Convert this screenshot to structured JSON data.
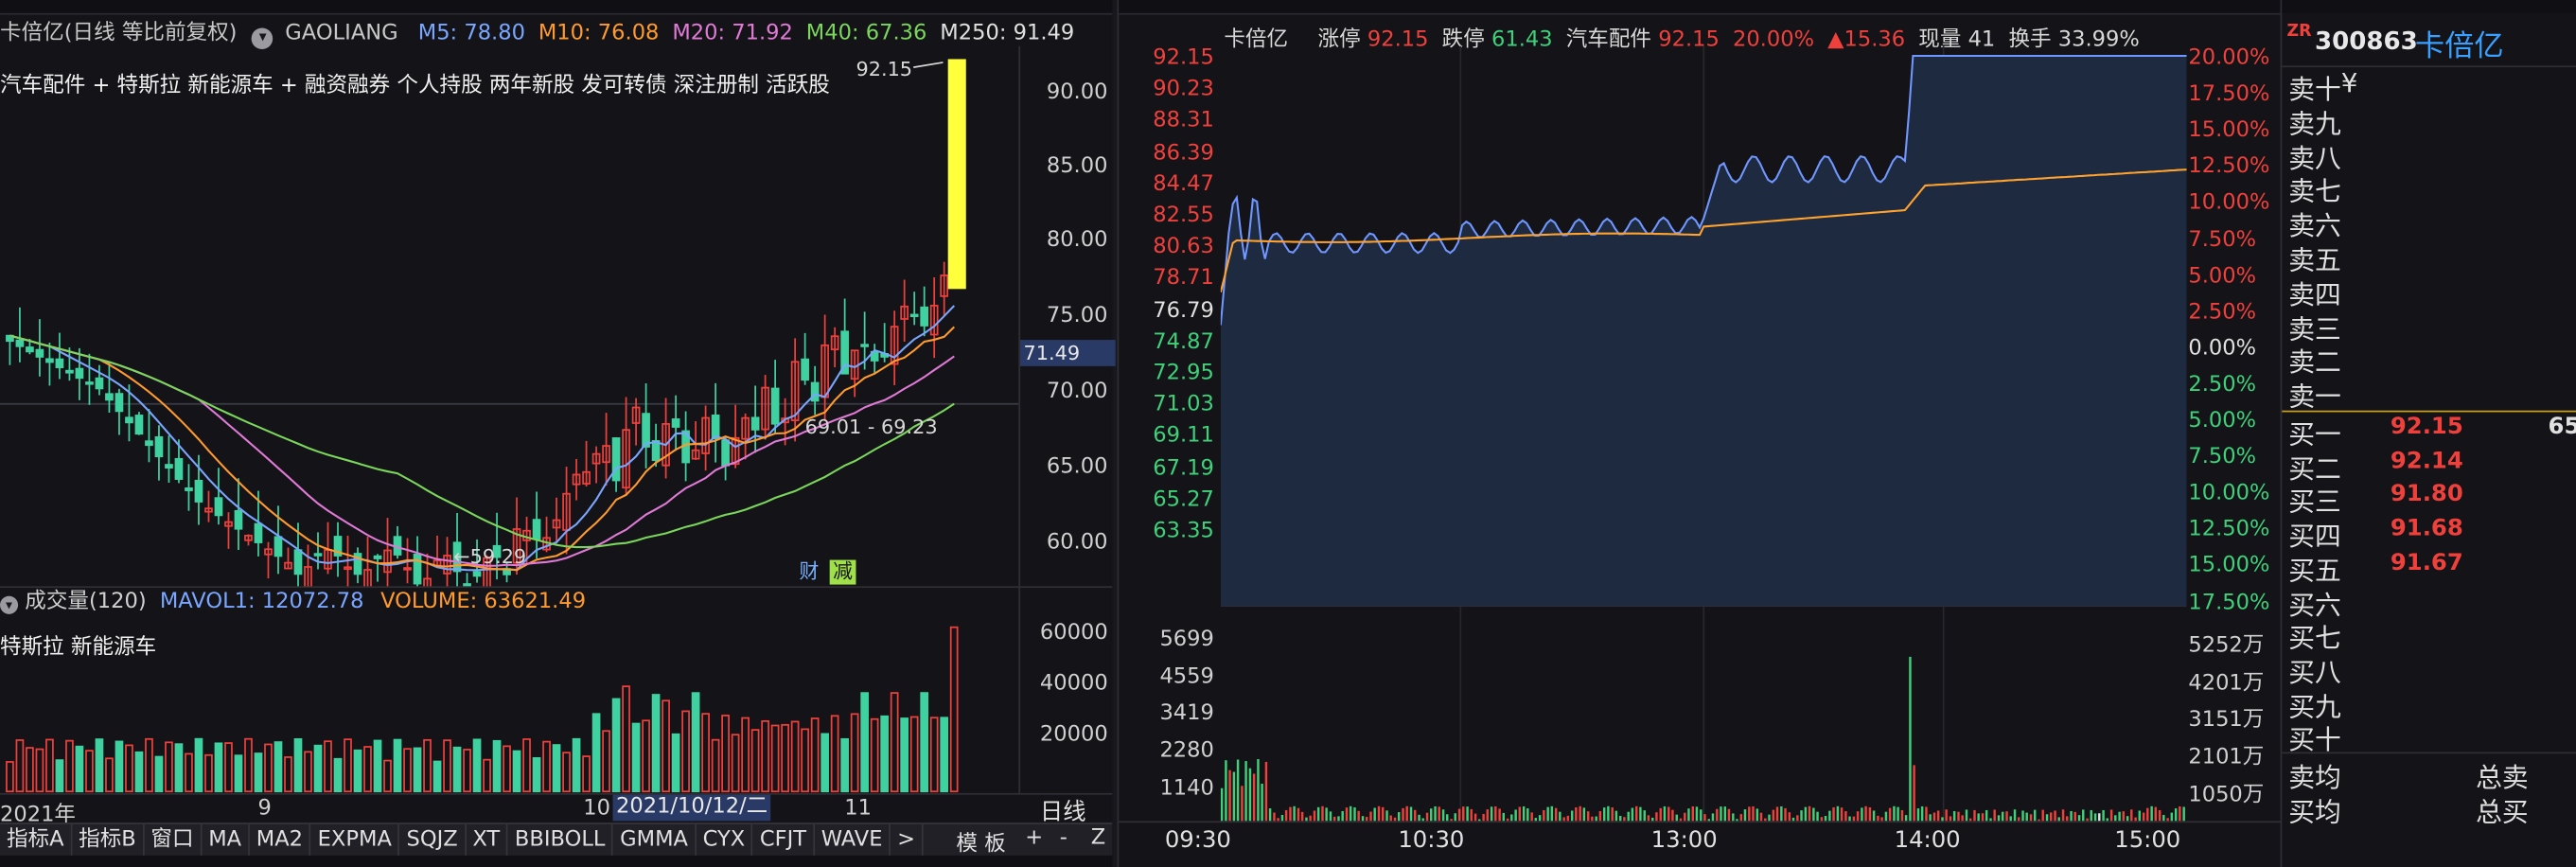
{
  "kline": {
    "header": {
      "title": "卡倍亿(日线 等比前复权)",
      "indicator": "GAOLIANG",
      "ma": [
        {
          "label": "M5: 78.80",
          "color": "#7aa6ff"
        },
        {
          "label": "M10: 76.08",
          "color": "#ff9a2e"
        },
        {
          "label": "M20: 71.92",
          "color": "#e07ad6"
        },
        {
          "label": "M40: 67.36",
          "color": "#7bd65c"
        },
        {
          "label": "M250: 91.49",
          "color": "#e0e0e0"
        }
      ]
    },
    "concepts": "汽车配件 + 特斯拉 新能源车 + 融资融券 个人持股 两年新股 发可转债 深注册制 活跃股",
    "y_ticks": [
      "90.00",
      "85.00",
      "80.00",
      "75.00",
      "70.00",
      "65.00",
      "60.00"
    ],
    "current_price_tag": "71.49",
    "high_label": "92.15",
    "low_label": "59.29",
    "range_label": "69.01 - 69.23",
    "badges": {
      "cai": "财",
      "jian": "减"
    },
    "volume": {
      "title": "成交量(120)",
      "mavol": "MAVOL1: 12072.78",
      "volume": "VOLUME: 63621.49",
      "concepts": "特斯拉 新能源车",
      "y_ticks": [
        "60000",
        "40000",
        "20000"
      ]
    },
    "x_labels": [
      "2021年",
      "9",
      "10",
      "11"
    ],
    "cursor_date": "2021/10/12/二",
    "period": "日线",
    "tabs": [
      "指标A",
      "指标B",
      "窗口",
      "MA",
      "MA2",
      "EXPMA",
      "SQJZ",
      "XT",
      "BBIBOLL",
      "GMMA",
      "CYX",
      "CFJT",
      "WAVE",
      ">"
    ],
    "template_label": "模 板",
    "nav_buttons": [
      "+",
      "-",
      "Z"
    ]
  },
  "intraday": {
    "header": {
      "name": "卡倍亿",
      "limit_up_label": "涨停",
      "limit_up": "92.15",
      "limit_down_label": "跌停",
      "limit_down": "61.43",
      "sector": "汽车配件",
      "price": "92.15",
      "pct": "20.00%",
      "change": "▲15.36",
      "volume_now": "现量 41",
      "turnover": "换手 33.99%"
    },
    "price_ticks_up": [
      "92.15",
      "90.23",
      "88.31",
      "86.39",
      "84.47",
      "82.55",
      "80.63",
      "78.71"
    ],
    "price_mid": "76.79",
    "price_ticks_down": [
      "74.87",
      "72.95",
      "71.03",
      "69.11",
      "67.19",
      "65.27",
      "63.35"
    ],
    "pct_ticks_up": [
      "20.00%",
      "17.50%",
      "15.00%",
      "12.50%",
      "10.00%",
      "7.50%",
      "5.00%",
      "2.50%"
    ],
    "pct_mid": "0.00%",
    "pct_ticks_down": [
      "2.50%",
      "5.00%",
      "7.50%",
      "10.00%",
      "12.50%",
      "15.00%",
      "17.50%"
    ],
    "vol_ticks_left": [
      "5699",
      "4559",
      "3419",
      "2280",
      "1140"
    ],
    "vol_ticks_right": [
      "5252万",
      "4201万",
      "3151万",
      "2101万",
      "1050万"
    ],
    "time_labels": [
      "09:30",
      "10:30",
      "13:00",
      "14:00",
      "15:00"
    ]
  },
  "order_book": {
    "badge": "ZR",
    "code": "300863",
    "name": "卡倍亿",
    "sell_rows": [
      {
        "label": "卖十",
        "price": "",
        "extra": "¥"
      },
      {
        "label": "卖九",
        "price": ""
      },
      {
        "label": "卖八",
        "price": ""
      },
      {
        "label": "卖七",
        "price": ""
      },
      {
        "label": "卖六",
        "price": ""
      },
      {
        "label": "卖五",
        "price": ""
      },
      {
        "label": "卖四",
        "price": ""
      },
      {
        "label": "卖三",
        "price": ""
      },
      {
        "label": "卖二",
        "price": ""
      },
      {
        "label": "卖一",
        "price": ""
      }
    ],
    "buy_rows": [
      {
        "label": "买一",
        "price": "92.15",
        "vol": "65"
      },
      {
        "label": "买二",
        "price": "92.14"
      },
      {
        "label": "买三",
        "price": "91.80"
      },
      {
        "label": "买四",
        "price": "91.68"
      },
      {
        "label": "买五",
        "price": "91.67"
      },
      {
        "label": "买六",
        "price": ""
      },
      {
        "label": "买七",
        "price": ""
      },
      {
        "label": "买八",
        "price": ""
      },
      {
        "label": "买九",
        "price": ""
      },
      {
        "label": "买十",
        "price": ""
      }
    ],
    "avg_sell": "卖均",
    "avg_buy": "买均",
    "total_sell": "总卖",
    "total_buy": "总买"
  },
  "colors": {
    "up": "#f0403c",
    "down": "#3fd1a0",
    "accent": "#3aa0ff",
    "yellow": "#ffff3c"
  }
}
